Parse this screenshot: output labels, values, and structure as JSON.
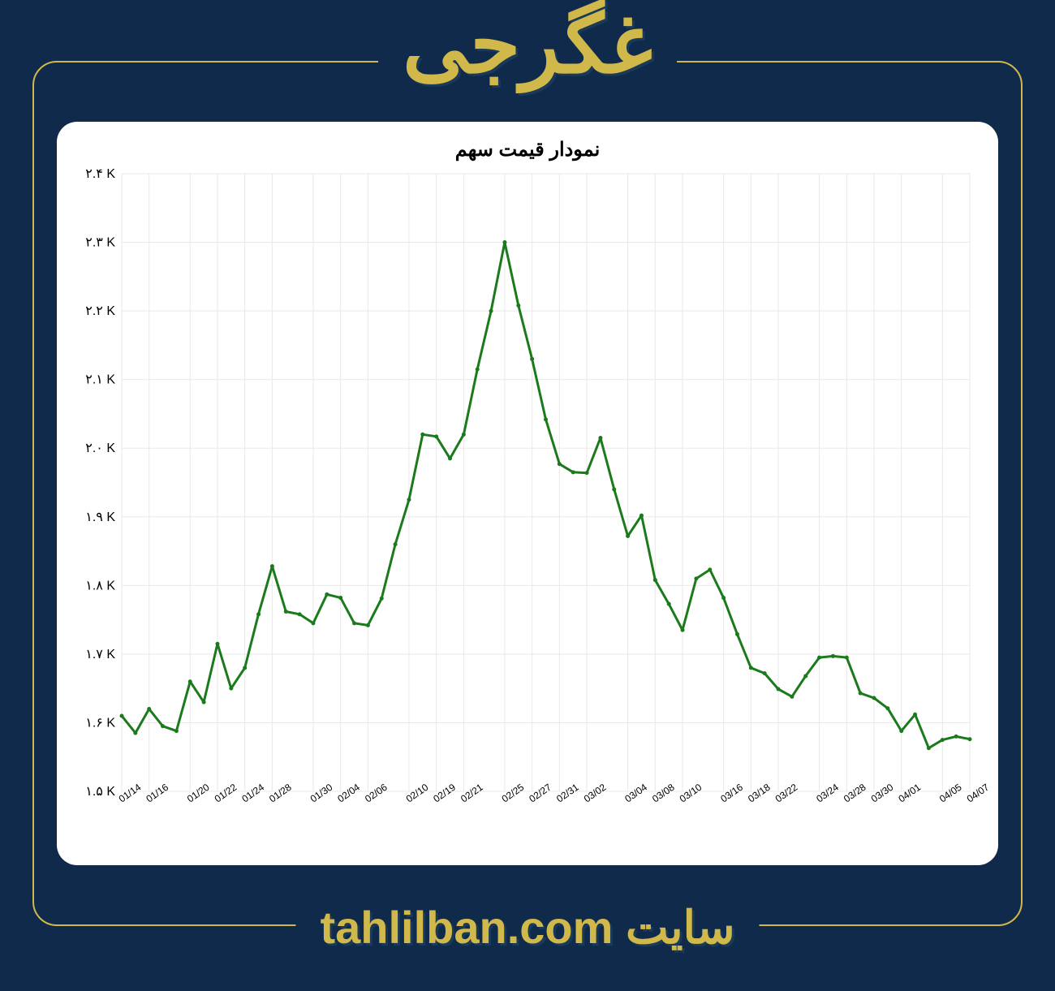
{
  "header": {
    "stock_name": "غگرجی"
  },
  "footer": {
    "site_label": "سایت",
    "site_url": "tahlilban.com"
  },
  "chart": {
    "type": "line",
    "title": "نمودار قیمت سهم",
    "background_color": "#ffffff",
    "grid_color": "#e9e9e9",
    "border_color": "#e9e9e9",
    "line_color": "#1b7a1b",
    "marker_color": "#1b7a1b",
    "line_width": 3,
    "marker_radius": 2.5,
    "ylim": [
      1500,
      2400
    ],
    "ytick_step": 100,
    "yticks": [
      1500,
      1600,
      1700,
      1800,
      1900,
      2000,
      2100,
      2200,
      2300,
      2400
    ],
    "ytick_labels": [
      "۱.۵ K",
      "۱.۶ K",
      "۱.۷ K",
      "۱.۸ K",
      "۱.۹ K",
      "۲.۰ K",
      "۲.۱ K",
      "۲.۲ K",
      "۲.۳ K",
      "۲.۴ K"
    ],
    "x_labels": [
      "01/14",
      "01/16",
      "01/20",
      "01/22",
      "01/24",
      "01/28",
      "01/30",
      "02/04",
      "02/06",
      "02/10",
      "02/19",
      "02/21",
      "02/25",
      "02/27",
      "02/31",
      "03/02",
      "03/04",
      "03/08",
      "03/10",
      "03/16",
      "03/18",
      "03/22",
      "03/24",
      "03/28",
      "03/30",
      "04/01",
      "04/05",
      "04/07"
    ],
    "values": [
      1610,
      1585,
      1620,
      1595,
      1588,
      1660,
      1630,
      1715,
      1650,
      1680,
      1758,
      1828,
      1762,
      1758,
      1745,
      1787,
      1782,
      1745,
      1742,
      1781,
      1860,
      1925,
      2020,
      2017,
      1985,
      2020,
      2115,
      2200,
      2300,
      2208,
      2130,
      2042,
      1977,
      1965,
      1964,
      2015,
      1940,
      1872,
      1902,
      1808,
      1773,
      1735,
      1810,
      1823,
      1782,
      1729,
      1680,
      1672,
      1649,
      1638,
      1668,
      1695,
      1697,
      1695,
      1643,
      1636,
      1621,
      1588,
      1612,
      1563,
      1575,
      1580,
      1576
    ]
  }
}
